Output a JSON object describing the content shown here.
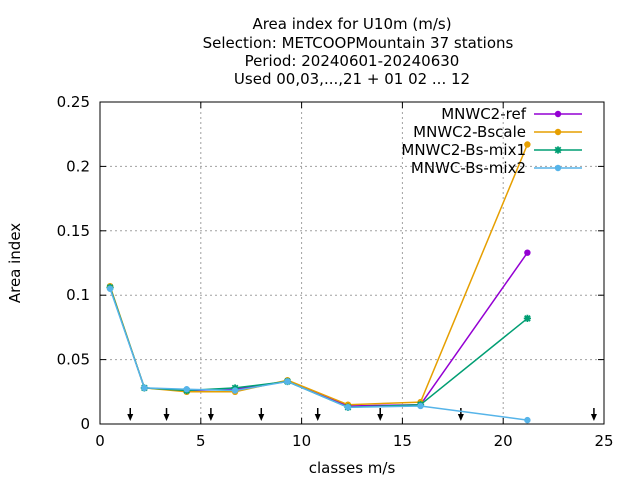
{
  "chart_data": {
    "type": "line",
    "title_lines": [
      "Area index  for U10m (m/s)",
      "Selection: METCOOPMountain      37 stations",
      "Period: 20240601-20240630",
      "Used 00,03,...,21 + 01 02 ... 12"
    ],
    "xlabel": "classes m/s",
    "ylabel": "Area index",
    "xlim": [
      0,
      25
    ],
    "ylim": [
      0,
      0.25
    ],
    "xticks": [
      0,
      5,
      10,
      15,
      20,
      25
    ],
    "xtick_labels": [
      "0",
      "5",
      "10",
      "15",
      "20",
      "25"
    ],
    "yticks": [
      0,
      0.05,
      0.1,
      0.15,
      0.2,
      0.25
    ],
    "ytick_labels": [
      "0",
      "0.05",
      "0.1",
      "0.15",
      "0.2",
      "0.25"
    ],
    "grid": true,
    "legend_position": "top-right",
    "series": [
      {
        "name": "MNWC2-ref",
        "color": "#9400d3",
        "marker": "filled-circle",
        "x": [
          0.5,
          2.2,
          4.3,
          6.7,
          9.3,
          12.3,
          15.9,
          21.2
        ],
        "y": [
          0.106,
          0.028,
          0.026,
          0.027,
          0.033,
          0.014,
          0.015,
          0.133
        ]
      },
      {
        "name": "MNWC2-Bscale",
        "color": "#e69f00",
        "marker": "filled-circle",
        "x": [
          0.5,
          2.2,
          4.3,
          6.7,
          9.3,
          12.3,
          15.9,
          21.2
        ],
        "y": [
          0.107,
          0.028,
          0.025,
          0.025,
          0.034,
          0.015,
          0.017,
          0.217
        ]
      },
      {
        "name": "MNWC2-Bs-mix1",
        "color": "#009e73",
        "marker": "star",
        "x": [
          0.5,
          2.2,
          4.3,
          6.7,
          9.3,
          12.3,
          15.9,
          21.2
        ],
        "y": [
          0.106,
          0.028,
          0.026,
          0.028,
          0.033,
          0.013,
          0.015,
          0.082
        ]
      },
      {
        "name": "MNWC-Bs-mix2",
        "color": "#56b4e9",
        "marker": "filled-circle",
        "x": [
          0.5,
          2.2,
          4.3,
          6.7,
          9.3,
          12.3,
          15.9,
          21.2
        ],
        "y": [
          0.105,
          0.028,
          0.027,
          0.026,
          0.033,
          0.013,
          0.014,
          0.003
        ]
      }
    ],
    "class_boundaries": [
      1.5,
      3.3,
      5.5,
      8.0,
      10.8,
      13.9,
      17.9,
      24.5
    ]
  }
}
